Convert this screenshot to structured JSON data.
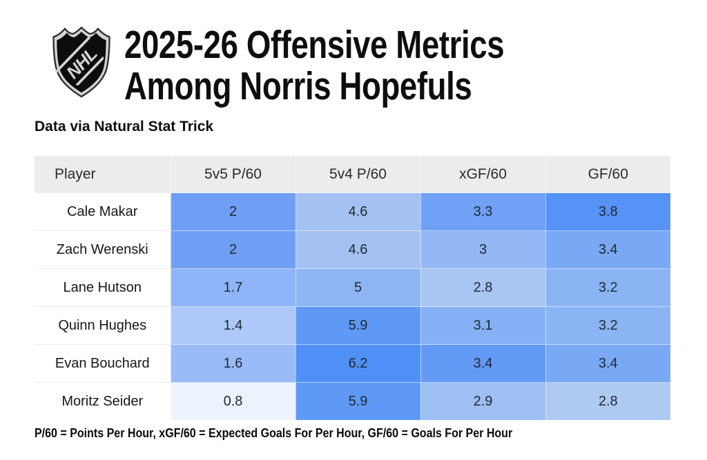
{
  "header": {
    "logo_label": "NHL",
    "title_line1": "2025-26 Offensive Metrics",
    "title_line2": "Among Norris Hopefuls",
    "source_note": "Data via Natural Stat Trick"
  },
  "footnote": "P/60 = Points Per Hour, xGF/60 = Expected Goals For Per Hour, GF/60 = Goals For Per Hour",
  "colors": {
    "page_bg": "#ffffff",
    "header_row_bg": "#ececec",
    "title_text": "#0e0e0e",
    "cell_text": "#1f2730"
  },
  "chart_data": {
    "type": "heatmap",
    "title": "2025-26 Offensive Metrics Among Norris Hopefuls",
    "source": "Data via Natural Stat Trick",
    "columns": [
      "Player",
      "5v5 P/60",
      "5v4 P/60",
      "xGF/60",
      "GF/60"
    ],
    "rows": [
      {
        "player": "Cale Makar",
        "values": [
          2,
          4.6,
          3.3,
          3.8
        ]
      },
      {
        "player": "Zach Werenski",
        "values": [
          2,
          4.6,
          3,
          3.4
        ]
      },
      {
        "player": "Lane Hutson",
        "values": [
          1.7,
          5,
          2.8,
          3.2
        ]
      },
      {
        "player": "Quinn Hughes",
        "values": [
          1.4,
          5.9,
          3.1,
          3.2
        ]
      },
      {
        "player": "Evan Bouchard",
        "values": [
          1.6,
          6.2,
          3.4,
          3.4
        ]
      },
      {
        "player": "Moritz Seider",
        "values": [
          0.8,
          5.9,
          2.9,
          2.8
        ]
      }
    ],
    "color_scale": {
      "per_column": [
        {
          "column": "5v5 P/60",
          "min": 0.8,
          "max": 2,
          "min_color": "#edf3fd",
          "max_color": "#6f9ff5"
        },
        {
          "column": "5v4 P/60",
          "min": 4.6,
          "max": 6.2,
          "min_color": "#a3c1f2",
          "max_color": "#4f90f7"
        },
        {
          "column": "xGF/60",
          "min": 2.8,
          "max": 3.4,
          "min_color": "#a9c6f3",
          "max_color": "#639af6"
        },
        {
          "column": "GF/60",
          "min": 2.8,
          "max": 3.8,
          "min_color": "#aecaf2",
          "max_color": "#5593f7"
        }
      ]
    }
  }
}
